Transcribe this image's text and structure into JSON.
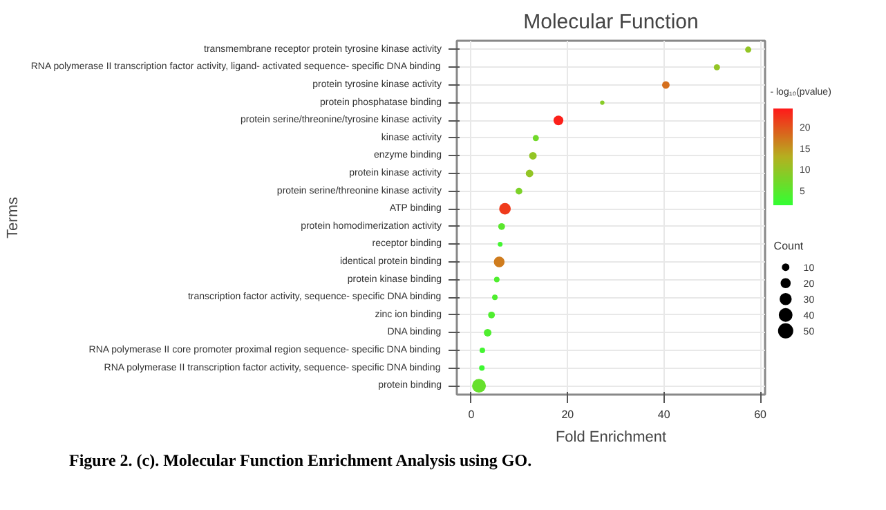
{
  "chart_data": {
    "type": "bubble",
    "title": "Molecular Function",
    "xlabel": "Fold Enrichment",
    "ylabel": "Terms",
    "orientation": "horizontal",
    "categories": [
      "transmembrane receptor protein tyrosine kinase activity",
      "RNA polymerase II transcription factor activity, ligand- activated sequence- specific DNA binding",
      "protein tyrosine kinase activity",
      "protein phosphatase binding",
      "protein serine/threonine/tyrosine kinase activity",
      "kinase activity",
      "enzyme binding",
      "protein kinase activity",
      "protein serine/threonine kinase activity",
      "ATP binding",
      "protein homodimerization activity",
      "receptor binding",
      "identical protein binding",
      "protein kinase binding",
      "transcription factor activity, sequence- specific DNA binding",
      "zinc ion binding",
      "DNA binding",
      "RNA polymerase II core promoter proximal region sequence- specific DNA binding",
      "RNA polymerase II transcription factor activity, sequence- specific DNA binding",
      "protein binding"
    ],
    "values": [
      57.5,
      51,
      40.4,
      27.2,
      18.1,
      13.4,
      12.8,
      12.1,
      9.9,
      7.0,
      6.3,
      6.0,
      5.8,
      5.3,
      4.9,
      4.2,
      3.4,
      2.3,
      2.2,
      1.6
    ],
    "sizes": [
      10,
      10,
      15,
      5,
      25,
      10,
      15,
      15,
      12,
      35,
      12,
      6,
      30,
      8,
      8,
      12,
      15,
      8,
      8,
      50
    ],
    "size_legend": [
      10,
      20,
      30,
      40,
      50
    ],
    "cvalues": [
      10,
      10,
      18,
      9,
      24,
      7,
      10,
      10,
      8,
      22,
      5,
      3,
      17,
      4,
      4,
      4,
      4,
      3,
      2.5,
      6
    ],
    "clabel": "- log₁₀(pvalue)",
    "clim": [
      1.5,
      24.5
    ],
    "cticks": [
      5,
      10,
      15,
      20
    ],
    "xlim": [
      -3,
      61
    ],
    "xticks": [
      0,
      20,
      40,
      60
    ],
    "grid": true,
    "marker": "circle",
    "legend_title": "Count",
    "annotations": [
      "Figure 2. (c). Molecular Function Enrichment Analysis using GO."
    ]
  }
}
